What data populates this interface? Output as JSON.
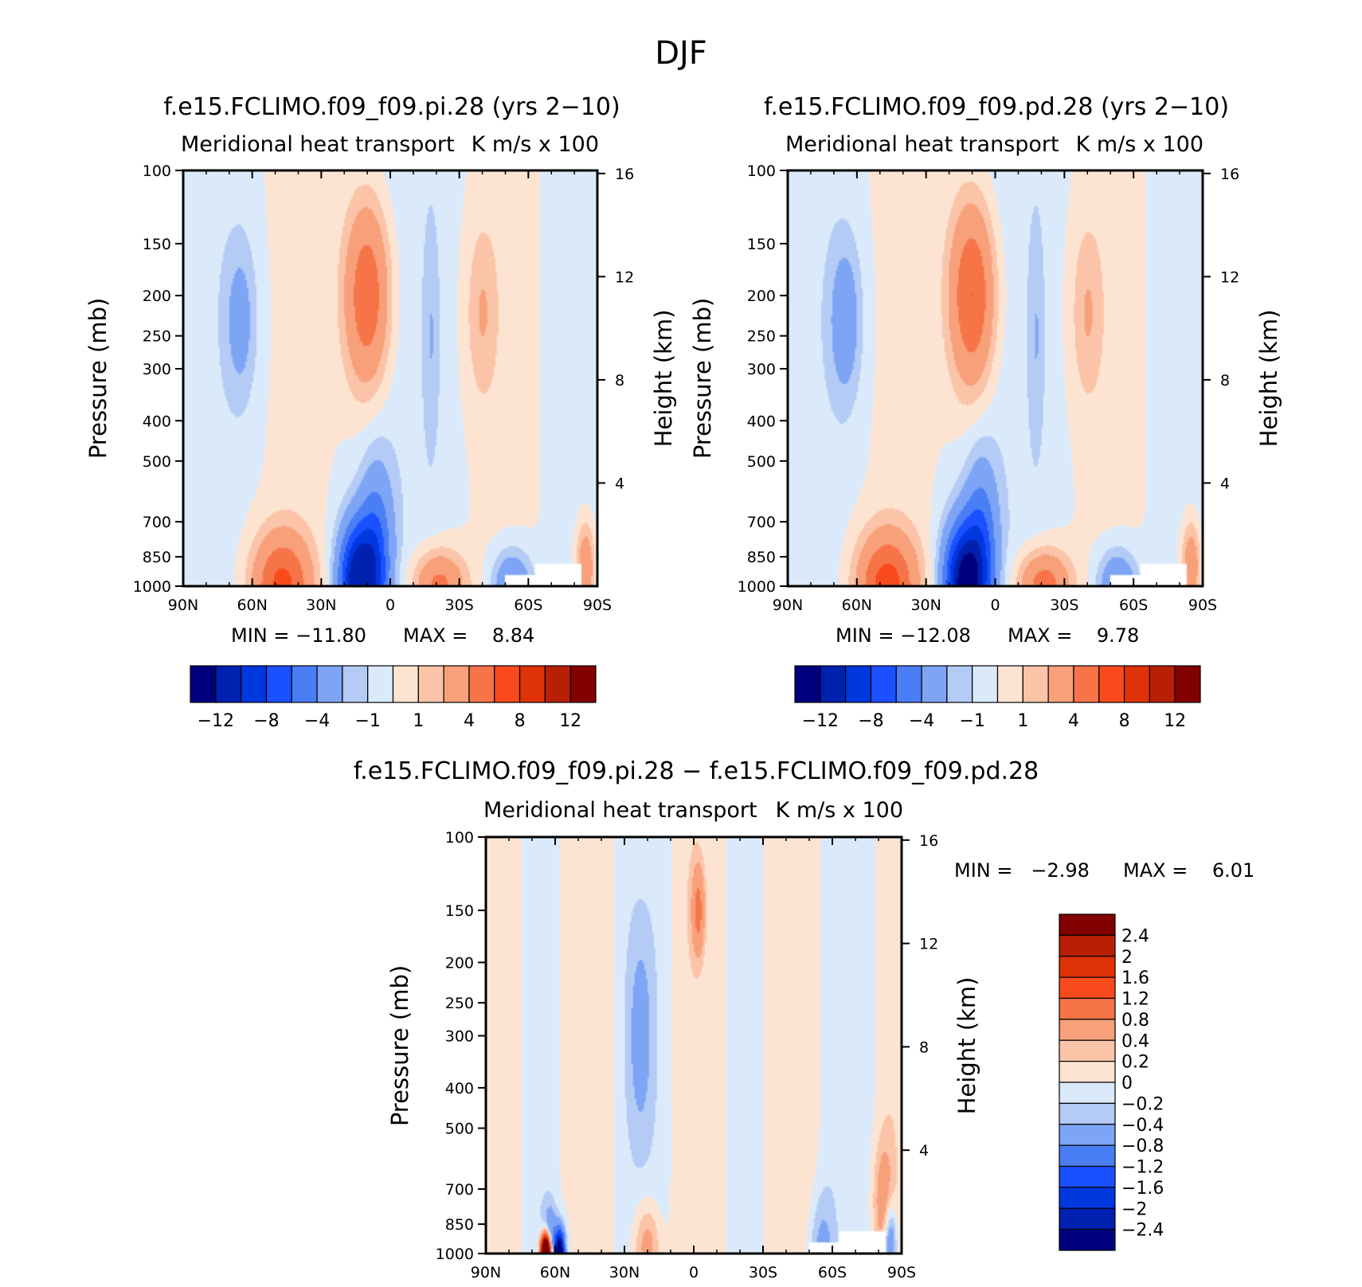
{
  "figure": {
    "title": "DJF"
  },
  "chart_data": [
    {
      "type": "heatmap",
      "title": "f.e15.FCLIMO.f09_f09.pi.28 (yrs 2−10)",
      "left_subtitle": "Meridional heat transport",
      "right_subtitle": "K m/s x 100",
      "ylabel": "Pressure (mb)",
      "ylabel_right": "Height (km)",
      "x_ticks": [
        "90N",
        "60N",
        "30N",
        "0",
        "30S",
        "60S",
        "90S"
      ],
      "y_ticks": [
        "100",
        "150",
        "200",
        "250",
        "300",
        "400",
        "500",
        "700",
        "850",
        "1000"
      ],
      "y_ticks_right": [
        "16",
        "12",
        "8",
        "4"
      ],
      "min_label": "MIN = −11.80",
      "max_label": "MAX =    8.84",
      "min": -11.8,
      "max": 8.84,
      "colorbar_ticks": [
        "−12",
        "−8",
        "−4",
        "−1",
        "1",
        "4",
        "8",
        "12"
      ],
      "features": [
        {
          "lat": 65,
          "p": 230,
          "sx": 5,
          "sy": 0.14,
          "v": -2.5
        },
        {
          "lat": 10,
          "p": 200,
          "sx": 7,
          "sy": 0.16,
          "v": 6.0
        },
        {
          "lat": -18,
          "p": 250,
          "sx": 2.5,
          "sy": 0.2,
          "v": -1.5
        },
        {
          "lat": -40,
          "p": 220,
          "sx": 5,
          "sy": 0.15,
          "v": 2.0
        },
        {
          "lat": 47,
          "p": 1000,
          "sx": 9,
          "sy": 0.09,
          "v": 6.5
        },
        {
          "lat": 14,
          "p": 980,
          "sx": 6,
          "sy": 0.1,
          "v": -11.8
        },
        {
          "lat": 6,
          "p": 840,
          "sx": 5,
          "sy": 0.15,
          "v": -5.0
        },
        {
          "lat": -21,
          "p": 1000,
          "sx": 8,
          "sy": 0.06,
          "v": 5.0
        },
        {
          "lat": -53,
          "p": 1000,
          "sx": 6,
          "sy": 0.06,
          "v": -4.5
        },
        {
          "lat": -85,
          "p": 900,
          "sx": 3,
          "sy": 0.08,
          "v": 4.0
        }
      ]
    },
    {
      "type": "heatmap",
      "title": "f.e15.FCLIMO.f09_f09.pd.28 (yrs 2−10)",
      "left_subtitle": "Meridional heat transport",
      "right_subtitle": "K m/s x 100",
      "ylabel": "Pressure (mb)",
      "ylabel_right": "Height (km)",
      "x_ticks": [
        "90N",
        "60N",
        "30N",
        "0",
        "30S",
        "60S",
        "90S"
      ],
      "y_ticks": [
        "100",
        "150",
        "200",
        "250",
        "300",
        "400",
        "500",
        "700",
        "850",
        "1000"
      ],
      "y_ticks_right": [
        "16",
        "12",
        "8",
        "4"
      ],
      "min_label": "MIN = −12.08",
      "max_label": "MAX =    9.78",
      "min": -12.08,
      "max": 9.78,
      "colorbar_ticks": [
        "−12",
        "−8",
        "−4",
        "−1",
        "1",
        "4",
        "8",
        "12"
      ],
      "features": [
        {
          "lat": 65,
          "p": 230,
          "sx": 5,
          "sy": 0.14,
          "v": -3.0
        },
        {
          "lat": 10,
          "p": 200,
          "sx": 7,
          "sy": 0.16,
          "v": 6.5
        },
        {
          "lat": -18,
          "p": 250,
          "sx": 2.5,
          "sy": 0.2,
          "v": -1.5
        },
        {
          "lat": -40,
          "p": 220,
          "sx": 5,
          "sy": 0.15,
          "v": 2.0
        },
        {
          "lat": 47,
          "p": 1000,
          "sx": 9,
          "sy": 0.09,
          "v": 7.0
        },
        {
          "lat": 14,
          "p": 980,
          "sx": 6,
          "sy": 0.1,
          "v": -12.0
        },
        {
          "lat": 6,
          "p": 840,
          "sx": 5,
          "sy": 0.15,
          "v": -5.5
        },
        {
          "lat": -21,
          "p": 1000,
          "sx": 8,
          "sy": 0.06,
          "v": 5.5
        },
        {
          "lat": -53,
          "p": 1000,
          "sx": 6,
          "sy": 0.06,
          "v": -4.5
        },
        {
          "lat": -85,
          "p": 900,
          "sx": 3,
          "sy": 0.08,
          "v": 4.0
        }
      ]
    },
    {
      "type": "heatmap",
      "title": "f.e15.FCLIMO.f09_f09.pi.28 − f.e15.FCLIMO.f09_f09.pd.28",
      "left_subtitle": "Meridional heat transport",
      "right_subtitle": "K m/s x 100",
      "ylabel": "Pressure (mb)",
      "ylabel_right": "Height (km)",
      "x_ticks": [
        "90N",
        "60N",
        "30N",
        "0",
        "30S",
        "60S",
        "90S"
      ],
      "y_ticks": [
        "100",
        "150",
        "200",
        "250",
        "300",
        "400",
        "500",
        "700",
        "850",
        "1000"
      ],
      "y_ticks_right": [
        "16",
        "12",
        "8",
        "4"
      ],
      "min_label": "MIN =   −2.98",
      "max_label": "MAX =    6.01",
      "min": -2.98,
      "max": 6.01,
      "colorbar_ticks": [
        "2.4",
        "2",
        "1.6",
        "1.2",
        "0.8",
        "0.4",
        "0.2",
        "0",
        "−0.2",
        "−0.4",
        "−0.8",
        "−1.2",
        "−1.6",
        "−2",
        "−2.4"
      ],
      "features": [
        {
          "lat": 23,
          "p": 300,
          "sx": 4,
          "sy": 0.2,
          "v": -0.5
        },
        {
          "lat": -2,
          "p": 150,
          "sx": 2,
          "sy": 0.08,
          "v": 0.9
        },
        {
          "lat": -55,
          "p": 1000,
          "sx": 4,
          "sy": 0.1,
          "v": -0.5
        },
        {
          "lat": 62,
          "p": 950,
          "sx": 2,
          "sy": 0.06,
          "v": -1.0
        },
        {
          "lat": 64,
          "p": 1000,
          "sx": 1.5,
          "sy": 0.03,
          "v": 6.0
        },
        {
          "lat": 58,
          "p": 1000,
          "sx": 1.5,
          "sy": 0.04,
          "v": -3.0
        },
        {
          "lat": 20,
          "p": 960,
          "sx": 4,
          "sy": 0.07,
          "v": 0.6
        },
        {
          "lat": -82,
          "p": 750,
          "sx": 3,
          "sy": 0.1,
          "v": 0.6
        },
        {
          "lat": -85,
          "p": 950,
          "sx": 2,
          "sy": 0.07,
          "v": -1.0
        }
      ]
    }
  ],
  "palettes": {
    "absolute": [
      "#00007f",
      "#0020b0",
      "#0038e0",
      "#1a50ff",
      "#4a7ef5",
      "#7ea5f5",
      "#b3cbf5",
      "#daeafa",
      "#fde4d2",
      "#fbc4a8",
      "#f7a07a",
      "#f77448",
      "#f84a1a",
      "#e03208",
      "#b82006",
      "#820000"
    ],
    "difference": [
      "#00007f",
      "#0020b0",
      "#0038e0",
      "#1a50ff",
      "#4a7ef5",
      "#7ea5f5",
      "#b3cbf5",
      "#daeafa",
      "#fde4d2",
      "#fbc4a8",
      "#f7a07a",
      "#f77448",
      "#f84a1a",
      "#e03208",
      "#b82006",
      "#820000"
    ]
  }
}
